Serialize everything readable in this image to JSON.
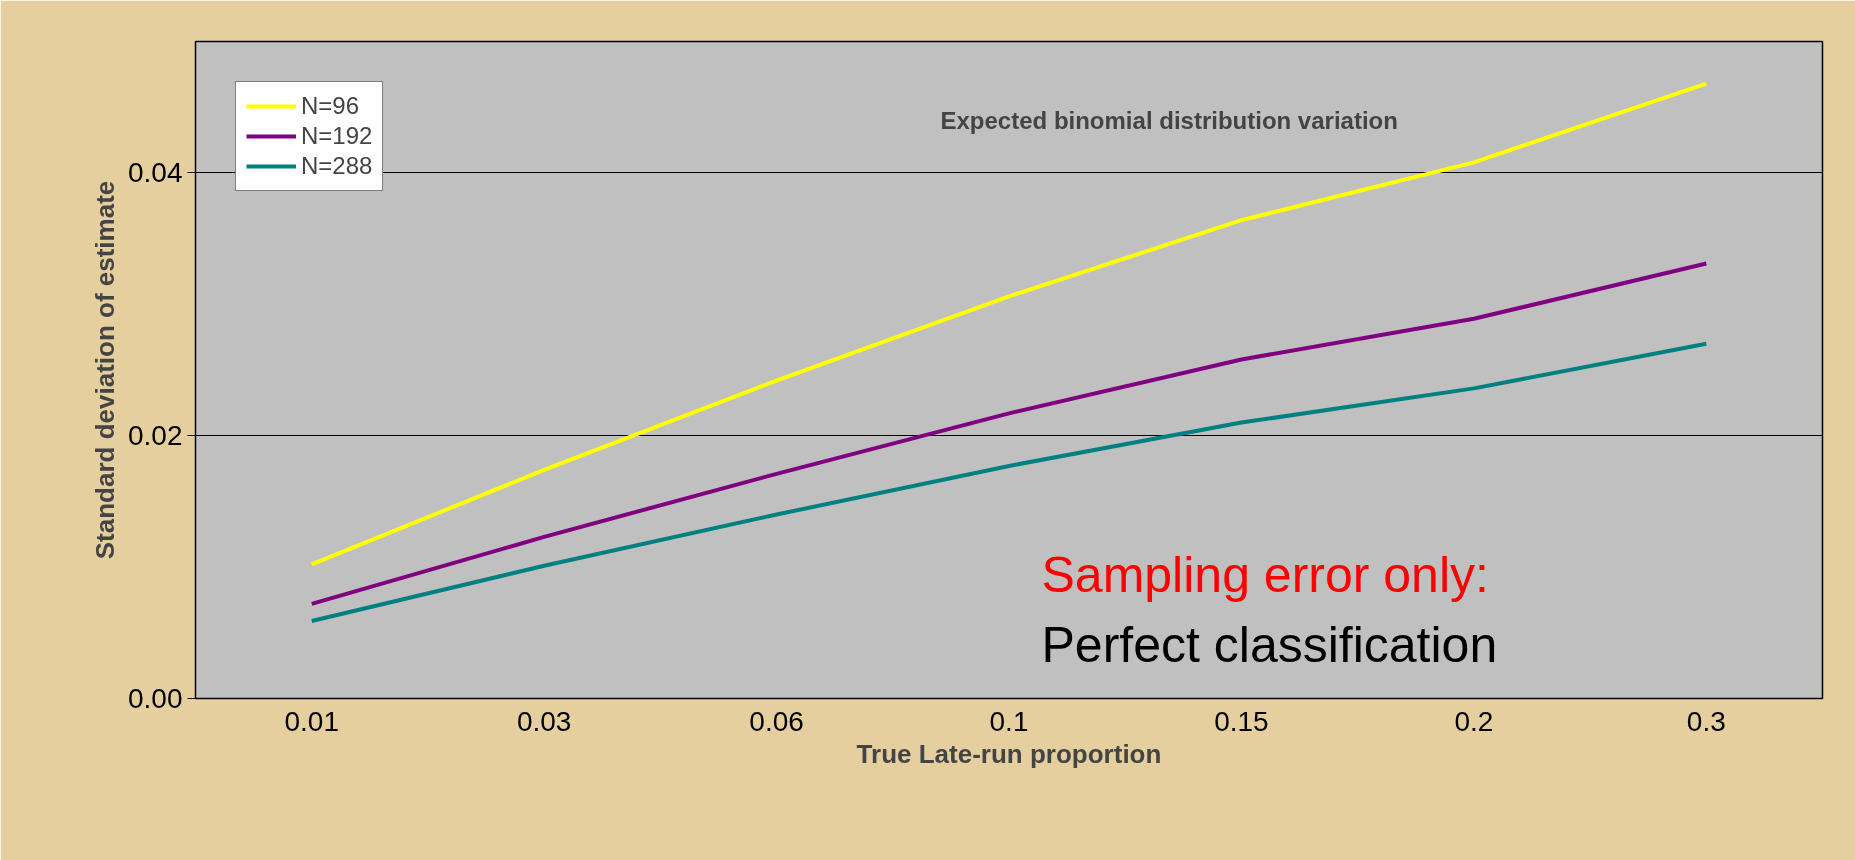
{
  "chart_data": {
    "type": "line",
    "title": "Expected binomial distribution variation",
    "xlabel": "True Late-run proportion",
    "ylabel": "Standard deviation of estimate",
    "categories": [
      "0.01",
      "0.03",
      "0.06",
      "0.1",
      "0.15",
      "0.2",
      "0.3"
    ],
    "series": [
      {
        "name": "N=96",
        "color": "#ffff00",
        "values": [
          0.0102,
          0.0174,
          0.0242,
          0.0306,
          0.0364,
          0.0408,
          0.0468
        ]
      },
      {
        "name": "N=192",
        "color": "#800080",
        "values": [
          0.0072,
          0.0123,
          0.0171,
          0.0217,
          0.0258,
          0.0289,
          0.0331
        ]
      },
      {
        "name": "N=288",
        "color": "#008080",
        "values": [
          0.0059,
          0.0101,
          0.014,
          0.0177,
          0.021,
          0.0236,
          0.027
        ]
      }
    ],
    "ylim": [
      0,
      0.05
    ],
    "yticks": [
      {
        "value": 0,
        "label": "0.00"
      },
      {
        "value": 0.02,
        "label": "0.02"
      },
      {
        "value": 0.04,
        "label": "0.04"
      }
    ],
    "grid": "y",
    "legend": "top left",
    "marker": "none",
    "line_style": "solid",
    "annotations": [
      "Sampling error only:",
      "Perfect classification"
    ]
  }
}
